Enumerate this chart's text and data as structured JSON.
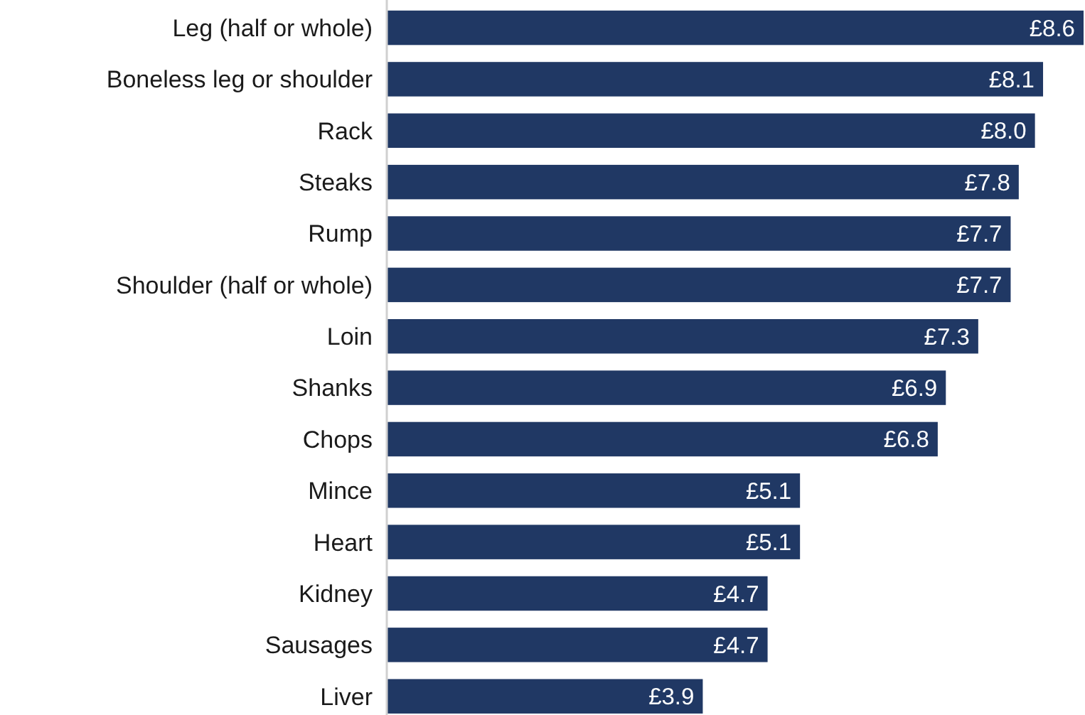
{
  "chart_data": {
    "type": "bar",
    "orientation": "horizontal",
    "categories": [
      "Leg (half or whole)",
      "Boneless leg or shoulder",
      "Rack",
      "Steaks",
      "Rump",
      "Shoulder (half or whole)",
      "Loin",
      "Shanks",
      "Chops",
      "Mince",
      "Heart",
      "Kidney",
      "Sausages",
      "Liver"
    ],
    "values": [
      8.6,
      8.1,
      8.0,
      7.8,
      7.7,
      7.7,
      7.3,
      6.9,
      6.8,
      5.1,
      5.1,
      4.7,
      4.7,
      3.9
    ],
    "value_labels": [
      "£8.6",
      "£8.1",
      "£8.0",
      "£7.8",
      "£7.7",
      "£7.7",
      "£7.3",
      "£6.9",
      "£6.8",
      "£5.1",
      "£5.1",
      "£4.7",
      "£4.7",
      "£3.9"
    ],
    "color": "#203864"
  }
}
